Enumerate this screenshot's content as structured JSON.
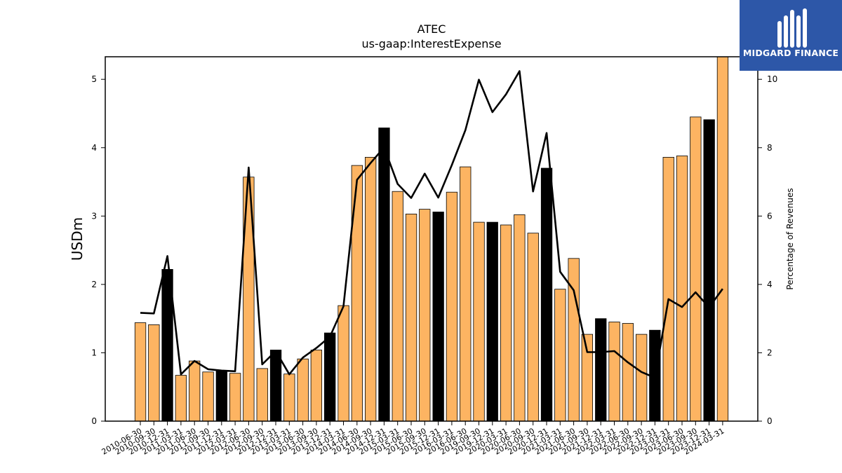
{
  "chart_data": {
    "type": "bar",
    "title": "ATEC",
    "subtitle": "us-gaap:InterestExpense",
    "ylabel": "USDm",
    "y2label": "Percentage of Revenues",
    "ylim": [
      0,
      5.33
    ],
    "y2lim": [
      0,
      10.66
    ],
    "yticks": [
      0,
      1,
      2,
      3,
      4,
      5
    ],
    "y2ticks": [
      0,
      2,
      4,
      6,
      8,
      10
    ],
    "categories": [
      "2010-06-30",
      "2010-09-30",
      "2010-12-31",
      "2011-03-31",
      "2011-06-30",
      "2011-09-30",
      "2011-12-31",
      "2012-03-31",
      "2012-06-30",
      "2012-09-30",
      "2012-12-31",
      "2013-03-31",
      "2013-06-30",
      "2013-09-30",
      "2013-12-31",
      "2014-03-31",
      "2014-06-30",
      "2014-09-30",
      "2014-12-31",
      "2015-03-31",
      "2015-06-30",
      "2015-09-30",
      "2015-12-31",
      "2016-03-31",
      "2016-06-30",
      "2019-09-30",
      "2019-12-31",
      "2020-03-31",
      "2020-06-30",
      "2020-09-30",
      "2020-12-31",
      "2021-03-31",
      "2021-06-30",
      "2021-09-30",
      "2021-12-31",
      "2022-03-31",
      "2022-06-30",
      "2022-09-30",
      "2022-12-31",
      "2023-03-31",
      "2023-06-30",
      "2023-09-30",
      "2023-12-31",
      "2024-03-31"
    ],
    "series": [
      {
        "kind": "bar",
        "values": [
          1.44,
          1.41,
          2.22,
          0.67,
          0.88,
          0.72,
          0.74,
          0.7,
          3.57,
          0.77,
          1.04,
          0.69,
          0.91,
          1.04,
          1.29,
          1.69,
          3.74,
          3.86,
          4.29,
          3.36,
          3.03,
          3.1,
          3.06,
          3.35,
          3.72,
          2.91,
          2.91,
          2.87,
          3.02,
          2.75,
          3.7,
          1.93,
          2.38,
          1.27,
          1.5,
          1.45,
          1.43,
          1.27,
          1.33,
          3.86,
          3.88,
          4.45,
          4.41,
          5.35
        ],
        "highlight": [
          false,
          false,
          true,
          false,
          false,
          false,
          true,
          false,
          false,
          false,
          true,
          false,
          false,
          false,
          true,
          false,
          false,
          false,
          true,
          false,
          false,
          false,
          true,
          false,
          false,
          false,
          true,
          false,
          false,
          false,
          true,
          false,
          false,
          false,
          true,
          false,
          false,
          false,
          true,
          false,
          false,
          false,
          true,
          false
        ],
        "color": "#fdb462",
        "highlight_color": "#000000"
      },
      {
        "kind": "line",
        "axis": "right",
        "values": [
          3.17,
          3.15,
          4.83,
          1.37,
          1.76,
          1.52,
          1.48,
          1.46,
          7.42,
          1.66,
          2.05,
          1.37,
          1.86,
          2.14,
          2.47,
          3.36,
          7.06,
          7.55,
          8.01,
          6.94,
          6.53,
          7.24,
          6.54,
          7.49,
          8.51,
          9.99,
          9.04,
          9.56,
          10.24,
          6.72,
          8.43,
          4.37,
          3.83,
          2.02,
          2.02,
          2.05,
          1.72,
          1.44,
          1.27,
          3.57,
          3.34,
          3.77,
          3.33,
          3.87
        ],
        "color": "#000000"
      }
    ]
  },
  "logo": {
    "text": "MIDGARD FINANCE",
    "bg": "#2d57a8"
  }
}
